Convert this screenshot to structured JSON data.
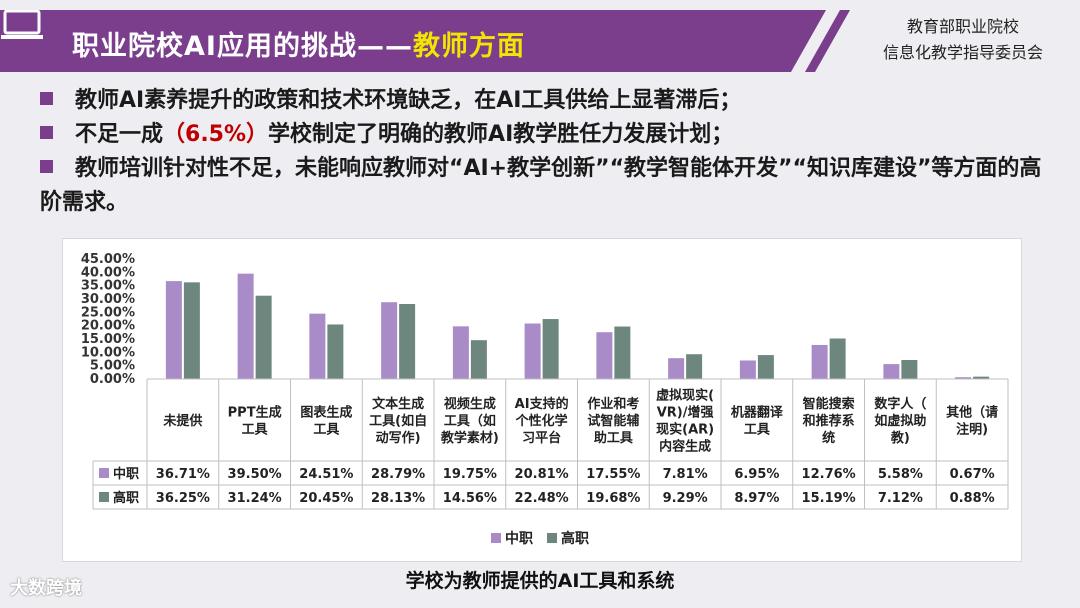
{
  "header": {
    "title_main": "职业院校AI应用的挑战——",
    "title_highlight": "教师方面",
    "org_line1": "教育部职业院校",
    "org_line2": "信息化教学指导委员会",
    "icon": "monitor-icon",
    "colors": {
      "bar": "#7a3e8c",
      "accent": "#f2e600"
    }
  },
  "bullets": {
    "b1": "教师AI素养提升的政策和技术环境缺乏，在AI工具供给上显著滞后；",
    "b2_pre": "不足一成",
    "b2_red": "（6.5%）",
    "b2_post": "学校制定了明确的教师AI教学胜任力发展计划；",
    "b3": "教师培训针对性不足，未能响应教师对“AI+教学创新”“教学智能体开发”“知识库建设”等方面的高阶需求。"
  },
  "chart_data": {
    "type": "bar",
    "categories": [
      "未提供",
      "PPT生成工具",
      "图表生成工具",
      "文本生成工具(如自动写作)",
      "视频生成工具（如教学素材）",
      "AI支持的个性化学习平台",
      "作业和考试智能辅助工具",
      "虚拟现实(VR)/增强现实(AR)内容生成",
      "机器翻译工具",
      "智能搜索和推荐系统",
      "数字人（如虚拟助教)",
      "其他（请注明)"
    ],
    "category_lines": [
      [
        "未提供"
      ],
      [
        "PPT生成",
        "工具"
      ],
      [
        "图表生成",
        "工具"
      ],
      [
        "文本生成",
        "工具(如自",
        "动写作)"
      ],
      [
        "视频生成",
        "工具（如",
        "教学素材)"
      ],
      [
        "AI支持的",
        "个性化学",
        "习平台"
      ],
      [
        "作业和考",
        "试智能辅",
        "助工具"
      ],
      [
        "虚拟现实(",
        "VR)/增强",
        "现实(AR)",
        "内容生成"
      ],
      [
        "机器翻译",
        "工具"
      ],
      [
        "智能搜索",
        "和推荐系",
        "统"
      ],
      [
        "数字人（",
        "如虚拟助",
        "教)"
      ],
      [
        "其他（请",
        "注明)"
      ]
    ],
    "series": [
      {
        "name": "中职",
        "color": "#a98bc8",
        "values": [
          36.71,
          39.5,
          24.51,
          28.79,
          19.75,
          20.81,
          17.55,
          7.81,
          6.95,
          12.76,
          5.58,
          0.67
        ]
      },
      {
        "name": "高职",
        "color": "#6d877f",
        "values": [
          36.25,
          31.24,
          20.45,
          28.13,
          14.56,
          22.48,
          19.68,
          9.29,
          8.97,
          15.19,
          7.12,
          0.88
        ]
      }
    ],
    "y_ticks": [
      "0.00%",
      "5.00%",
      "10.00%",
      "15.00%",
      "20.00%",
      "25.00%",
      "30.00%",
      "35.00%",
      "40.00%",
      "45.00%"
    ],
    "ylim": [
      0,
      45
    ],
    "legend_position": "bottom",
    "data_table": true,
    "title": "学校为教师提供的AI工具和系统"
  },
  "watermark": "大数跨境"
}
